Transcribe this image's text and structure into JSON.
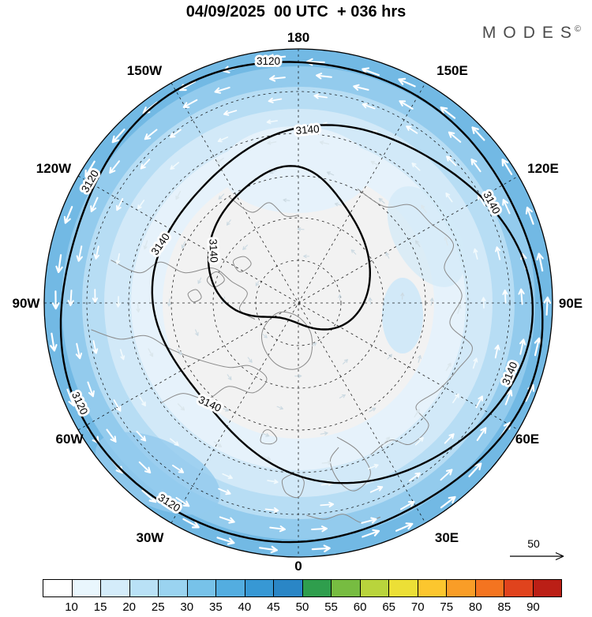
{
  "title": "04/09/2025  00 UTC  + 036 hrs",
  "logo": {
    "text": "MODES",
    "copyright": "©"
  },
  "map": {
    "longitude_labels": [
      "180",
      "150W",
      "150E",
      "120W",
      "120E",
      "90W",
      "90E",
      "60W",
      "60E",
      "30W",
      "30E",
      "0"
    ],
    "contour_labels": [
      "3120",
      "3120",
      "3120",
      "3120",
      "3140",
      "3140",
      "3140",
      "3140",
      "3140",
      "3140"
    ],
    "scale_value": "50"
  },
  "colorbar": {
    "tick_labels": [
      "10",
      "15",
      "20",
      "25",
      "30",
      "35",
      "40",
      "45",
      "50",
      "55",
      "60",
      "65",
      "70",
      "75",
      "80",
      "85",
      "90"
    ],
    "colors": [
      "#ffffff",
      "#e9f6fd",
      "#d4ecfa",
      "#b9e1f6",
      "#9ad3f0",
      "#77c2e9",
      "#53ade0",
      "#3798d4",
      "#2a86c6",
      "#2f9e4d",
      "#77bc41",
      "#b9d43c",
      "#ecdf36",
      "#fcc62e",
      "#f99d27",
      "#f47420",
      "#e0431d",
      "#bb1f16"
    ]
  },
  "chart_data": {
    "type": "map",
    "title": "04/09/2025 00 UTC + 036 hrs",
    "contour_levels": [
      3120,
      3140
    ],
    "colorbar_values": [
      10,
      15,
      20,
      25,
      30,
      35,
      40,
      45,
      50,
      55,
      60,
      65,
      70,
      75,
      80,
      85,
      90
    ],
    "wind_reference_value": 50
  }
}
